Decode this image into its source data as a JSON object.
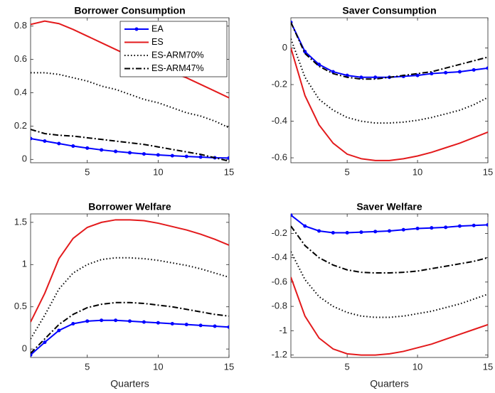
{
  "chart_data": [
    {
      "type": "line",
      "title": "Borrower Consumption",
      "x": [
        1,
        2,
        3,
        4,
        5,
        6,
        7,
        8,
        9,
        10,
        11,
        12,
        13,
        14,
        15
      ],
      "xlim": [
        1,
        15
      ],
      "xticks": [
        5,
        10,
        15
      ],
      "ylim": [
        -0.02,
        0.85
      ],
      "yticks": [
        0,
        0.2,
        0.4,
        0.6,
        0.8
      ],
      "legend": "upper right",
      "series": [
        {
          "name": "EA",
          "color": "#0000ff",
          "linestyle": "solid",
          "marker": "o",
          "values": [
            0.125,
            0.11,
            0.095,
            0.08,
            0.068,
            0.057,
            0.048,
            0.04,
            0.033,
            0.027,
            0.022,
            0.018,
            0.014,
            0.01,
            0.008
          ]
        },
        {
          "name": "ES",
          "color": "#e31a1c",
          "linestyle": "solid",
          "values": [
            0.81,
            0.83,
            0.815,
            0.78,
            0.74,
            0.7,
            0.66,
            0.62,
            0.58,
            0.55,
            0.52,
            0.49,
            0.45,
            0.41,
            0.37
          ]
        },
        {
          "name": "ES-ARM70%",
          "color": "#000000",
          "linestyle": "dotted",
          "values": [
            0.52,
            0.52,
            0.51,
            0.49,
            0.47,
            0.44,
            0.42,
            0.39,
            0.36,
            0.34,
            0.31,
            0.28,
            0.26,
            0.23,
            0.19
          ]
        },
        {
          "name": "ES-ARM47%",
          "color": "#000000",
          "linestyle": "dashdot",
          "values": [
            0.18,
            0.155,
            0.145,
            0.14,
            0.13,
            0.12,
            0.11,
            0.1,
            0.09,
            0.075,
            0.06,
            0.045,
            0.03,
            0.01,
            -0.01
          ]
        }
      ]
    },
    {
      "type": "line",
      "title": "Saver Consumption",
      "x": [
        1,
        2,
        3,
        4,
        5,
        6,
        7,
        8,
        9,
        10,
        11,
        12,
        13,
        14,
        15
      ],
      "xlim": [
        1,
        15
      ],
      "xticks": [
        5,
        10,
        15
      ],
      "ylim": [
        -0.627,
        0.165
      ],
      "yticks": [
        -0.6,
        -0.4,
        -0.2,
        0
      ],
      "series": [
        {
          "color": "#0000ff",
          "linestyle": "solid",
          "marker": "o",
          "values": [
            0.14,
            -0.02,
            -0.09,
            -0.13,
            -0.15,
            -0.16,
            -0.16,
            -0.16,
            -0.155,
            -0.15,
            -0.14,
            -0.135,
            -0.13,
            -0.12,
            -0.11
          ]
        },
        {
          "color": "#e31a1c",
          "linestyle": "solid",
          "values": [
            0,
            -0.26,
            -0.42,
            -0.52,
            -0.58,
            -0.605,
            -0.615,
            -0.615,
            -0.605,
            -0.59,
            -0.57,
            -0.545,
            -0.52,
            -0.49,
            -0.46
          ]
        },
        {
          "color": "#000000",
          "linestyle": "dotted",
          "values": [
            0.05,
            -0.16,
            -0.28,
            -0.34,
            -0.38,
            -0.4,
            -0.41,
            -0.41,
            -0.405,
            -0.395,
            -0.38,
            -0.36,
            -0.34,
            -0.31,
            -0.27
          ]
        },
        {
          "color": "#000000",
          "linestyle": "dashdot",
          "values": [
            0.14,
            -0.03,
            -0.1,
            -0.14,
            -0.16,
            -0.17,
            -0.17,
            -0.16,
            -0.15,
            -0.14,
            -0.13,
            -0.11,
            -0.09,
            -0.07,
            -0.05
          ]
        }
      ]
    },
    {
      "type": "line",
      "title": "Borrower Welfare",
      "xlabel": "Quarters",
      "x": [
        1,
        2,
        3,
        4,
        5,
        6,
        7,
        8,
        9,
        10,
        11,
        12,
        13,
        14,
        15
      ],
      "xlim": [
        1,
        15
      ],
      "xticks": [
        5,
        10,
        15
      ],
      "ylim": [
        -0.1,
        1.6
      ],
      "yticks": [
        0,
        0.5,
        1,
        1.5
      ],
      "series": [
        {
          "color": "#0000ff",
          "linestyle": "solid",
          "marker": "o",
          "values": [
            -0.07,
            0.08,
            0.22,
            0.3,
            0.33,
            0.34,
            0.34,
            0.33,
            0.32,
            0.31,
            0.3,
            0.29,
            0.28,
            0.27,
            0.26
          ]
        },
        {
          "color": "#e31a1c",
          "linestyle": "solid",
          "values": [
            0.32,
            0.66,
            1.07,
            1.31,
            1.44,
            1.5,
            1.53,
            1.53,
            1.52,
            1.49,
            1.45,
            1.41,
            1.36,
            1.3,
            1.23
          ]
        },
        {
          "color": "#000000",
          "linestyle": "dotted",
          "values": [
            0.12,
            0.4,
            0.71,
            0.9,
            1,
            1.06,
            1.08,
            1.08,
            1.07,
            1.05,
            1.02,
            0.99,
            0.95,
            0.9,
            0.85
          ]
        },
        {
          "color": "#000000",
          "linestyle": "dashdot",
          "values": [
            -0.05,
            0.12,
            0.29,
            0.41,
            0.49,
            0.53,
            0.55,
            0.55,
            0.54,
            0.52,
            0.5,
            0.47,
            0.44,
            0.41,
            0.39
          ]
        }
      ]
    },
    {
      "type": "line",
      "title": "Saver Welfare",
      "xlabel": "Quarters",
      "x": [
        1,
        2,
        3,
        4,
        5,
        6,
        7,
        8,
        9,
        10,
        11,
        12,
        13,
        14,
        15
      ],
      "xlim": [
        1,
        15
      ],
      "xticks": [
        5,
        10,
        15
      ],
      "ylim": [
        -1.22,
        -0.04
      ],
      "yticks": [
        -1.2,
        -1,
        -0.8,
        -0.6,
        -0.4,
        -0.2
      ],
      "series": [
        {
          "color": "#0000ff",
          "linestyle": "solid",
          "marker": "o",
          "values": [
            -0.05,
            -0.14,
            -0.18,
            -0.195,
            -0.195,
            -0.19,
            -0.185,
            -0.18,
            -0.17,
            -0.16,
            -0.155,
            -0.15,
            -0.14,
            -0.135,
            -0.13
          ]
        },
        {
          "color": "#e31a1c",
          "linestyle": "solid",
          "values": [
            -0.56,
            -0.88,
            -1.06,
            -1.15,
            -1.19,
            -1.2,
            -1.2,
            -1.19,
            -1.17,
            -1.14,
            -1.11,
            -1.07,
            -1.03,
            -0.99,
            -0.95
          ]
        },
        {
          "color": "#000000",
          "linestyle": "dotted",
          "values": [
            -0.35,
            -0.58,
            -0.72,
            -0.8,
            -0.85,
            -0.88,
            -0.89,
            -0.89,
            -0.88,
            -0.86,
            -0.84,
            -0.81,
            -0.78,
            -0.74,
            -0.7
          ]
        },
        {
          "color": "#000000",
          "linestyle": "dashdot",
          "values": [
            -0.14,
            -0.3,
            -0.4,
            -0.46,
            -0.5,
            -0.52,
            -0.525,
            -0.525,
            -0.52,
            -0.51,
            -0.49,
            -0.47,
            -0.45,
            -0.43,
            -0.4
          ]
        }
      ]
    }
  ]
}
